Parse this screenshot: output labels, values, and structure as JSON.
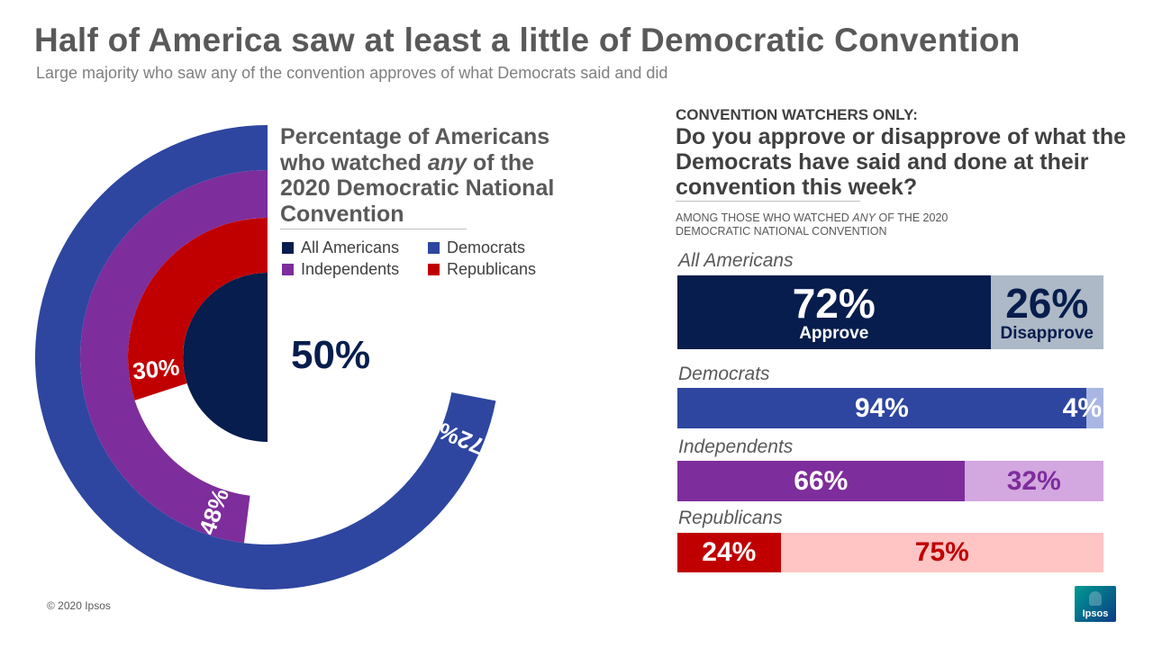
{
  "header": {
    "title": "Half of America saw at least a little of Democratic Convention",
    "subtitle": "Large majority who saw any of the convention approves of what Democrats said and did"
  },
  "colors": {
    "all": "#061d4d",
    "dem": "#2e46a0",
    "dem_light": "#a9b6e3",
    "ind": "#7e2d9c",
    "ind_light": "#d3a7e0",
    "rep": "#c00000",
    "rep_light": "#ffc4c4",
    "all_light": "#adb9c6"
  },
  "chart_data": [
    {
      "type": "radial-bar",
      "title_parts": [
        "Percentage of Americans who watched ",
        "any",
        " of the 2020 Democratic National Convention"
      ],
      "legend": [
        "All Americans",
        "Democrats",
        "Independents",
        "Republicans"
      ],
      "center_label": "50%",
      "series": [
        {
          "name": "All Americans",
          "value": 50,
          "label": "50%"
        },
        {
          "name": "Republicans",
          "value": 30,
          "label": "30%"
        },
        {
          "name": "Independents",
          "value": 48,
          "label": "48%"
        },
        {
          "name": "Democrats",
          "value": 72,
          "label": "72%"
        }
      ],
      "max": 100
    },
    {
      "type": "stacked-bar",
      "filter_label": "CONVENTION WATCHERS ONLY:",
      "question": "Do you approve or disapprove of what the Democrats have said and done at their convention this week?",
      "base_parts": [
        "Among those who watched ",
        "any",
        " of the 2020 Democratic National Convention"
      ],
      "categories": [
        "All Americans",
        "Democrats",
        "Independents",
        "Republicans"
      ],
      "series": [
        {
          "name": "Approve",
          "values": [
            72,
            94,
            66,
            24
          ]
        },
        {
          "name": "Disapprove",
          "values": [
            26,
            4,
            32,
            75
          ]
        }
      ],
      "labels": {
        "approve": [
          "72%",
          "94%",
          "66%",
          "24%"
        ],
        "disapprove": [
          "26%",
          "4%",
          "32%",
          "75%"
        ],
        "approve_word": "Approve",
        "disapprove_word": "Disapprove"
      }
    }
  ],
  "footer": {
    "copyright": "© 2020 Ipsos",
    "logo_text": "Ipsos"
  }
}
